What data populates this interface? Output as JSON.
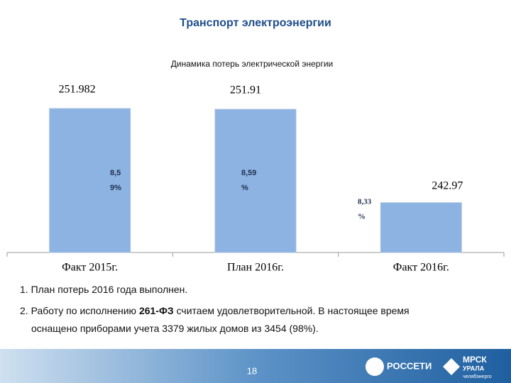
{
  "header": {
    "title": "Транспорт электроэнергии"
  },
  "chart_data": {
    "type": "bar",
    "title": "Динамика потерь электрической энергии",
    "categories": [
      "Факт 2015г.",
      "План 2016г.",
      "Факт 2016г."
    ],
    "values": [
      251.982,
      251.91,
      242.97
    ],
    "value_labels": [
      "251.982",
      "251.91",
      "242.97"
    ],
    "annotations": [
      [
        "8,5",
        "9%"
      ],
      [
        "8,59",
        "%"
      ],
      [
        "8,33",
        "%"
      ]
    ],
    "color": "#8db3e2",
    "ylim": [
      238.2,
      253
    ]
  },
  "notes": [
    {
      "parts": [
        "1. План потерь 2016 года выполнен."
      ]
    },
    {
      "parts": [
        "2. Работу по исполнению ",
        "261-ФЗ",
        " считаем удовлетворительной. В настоящее время"
      ]
    },
    {
      "parts": [
        "оснащено приборами учета 3379 жилых домов из 3454 (98%)."
      ]
    }
  ],
  "footer": {
    "page": "18",
    "logo1": "РОССЕТИ",
    "logo2": "МРСК",
    "logo2b": "УРАЛА",
    "logo2c": "челябэнерго"
  }
}
